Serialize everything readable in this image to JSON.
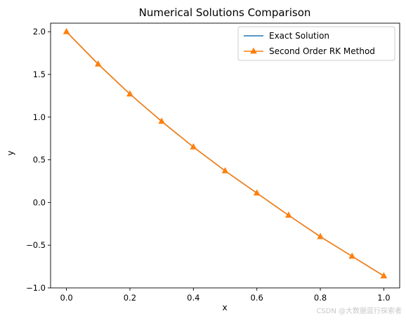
{
  "chart_data": {
    "type": "line",
    "title": "Numerical Solutions Comparison",
    "xlabel": "x",
    "ylabel": "y",
    "xlim": [
      -0.05,
      1.05
    ],
    "ylim": [
      -1.0,
      2.1
    ],
    "x_ticks": [
      0.0,
      0.2,
      0.4,
      0.6,
      0.8,
      1.0
    ],
    "x_tick_labels": [
      "0.0",
      "0.2",
      "0.4",
      "0.6",
      "0.8",
      "1.0"
    ],
    "y_ticks": [
      -1.0,
      -0.5,
      0.0,
      0.5,
      1.0,
      1.5,
      2.0
    ],
    "y_tick_labels": [
      "−1.0",
      "−0.5",
      "0.0",
      "0.5",
      "1.0",
      "1.5",
      "2.0"
    ],
    "grid": false,
    "legend_position": "top-right",
    "x": [
      0.0,
      0.1,
      0.2,
      0.3,
      0.4,
      0.5,
      0.6,
      0.7,
      0.8,
      0.9,
      1.0
    ],
    "series": [
      {
        "name": "Exact Solution",
        "color": "#1f77b4",
        "marker": "none",
        "values": [
          2.0,
          1.62,
          1.27,
          0.95,
          0.65,
          0.37,
          0.11,
          -0.15,
          -0.4,
          -0.63,
          -0.86
        ]
      },
      {
        "name": "Second Order RK Method",
        "color": "#ff7f0e",
        "marker": "triangle",
        "values": [
          2.0,
          1.62,
          1.27,
          0.95,
          0.65,
          0.37,
          0.11,
          -0.15,
          -0.4,
          -0.63,
          -0.86
        ]
      }
    ]
  },
  "watermark": "CSDN @大数据蓝行探索者"
}
